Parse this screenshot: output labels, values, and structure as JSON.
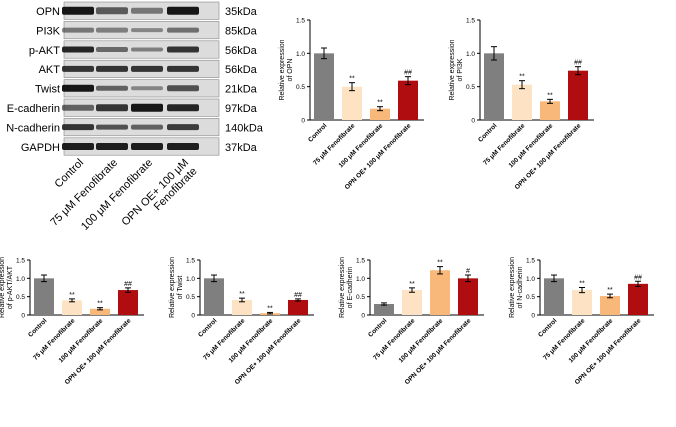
{
  "blot": {
    "proteins": [
      "OPN",
      "PI3K",
      "p-AKT",
      "AKT",
      "Twist",
      "E-cadherin",
      "N-cadherin",
      "GAPDH"
    ],
    "sizes": [
      "35kDa",
      "85kDa",
      "56kDa",
      "56kDa",
      "21kDa",
      "97kDa",
      "140kDa",
      "37kDa"
    ],
    "lanes": [
      "Control",
      "75 μM Fenofibrate",
      "100 μM Fenofibrate",
      "OPN OE+ 100 μM Fenofibrate"
    ]
  },
  "chart_data": [
    {
      "type": "bar",
      "ylabel": "Relative expression of OPN",
      "ylim": [
        0,
        1.5
      ],
      "ticks": [
        0,
        0.5,
        1.0,
        1.5
      ],
      "categories": [
        "Control",
        "75 μM Fenofibrate",
        "100 μM Fenofibrate",
        "OPN OE+ 100 μM Fenofibrate"
      ],
      "values": [
        1.0,
        0.5,
        0.17,
        0.59
      ],
      "errors": [
        0.08,
        0.06,
        0.03,
        0.06
      ],
      "annotations": [
        "",
        "**",
        "**",
        "##"
      ]
    },
    {
      "type": "bar",
      "ylabel": "Relative expression of PI3K",
      "ylim": [
        0,
        1.5
      ],
      "ticks": [
        0,
        0.5,
        1.0,
        1.5
      ],
      "categories": [
        "Control",
        "75 μM Fenofibrate",
        "100 μM Fenofibrate",
        "OPN OE+ 100 μM Fenofibrate"
      ],
      "values": [
        1.0,
        0.53,
        0.28,
        0.74
      ],
      "errors": [
        0.1,
        0.06,
        0.03,
        0.06
      ],
      "annotations": [
        "",
        "**",
        "**",
        "##"
      ]
    },
    {
      "type": "bar",
      "ylabel": "Relative expression of p-AKT/AKT",
      "ylim": [
        0,
        1.5
      ],
      "ticks": [
        0,
        0.5,
        1.0,
        1.5
      ],
      "categories": [
        "Control",
        "75 μM Fenofibrate",
        "100 μM Fenofibrate",
        "OPN OE+ 100 μM Fenofibrate"
      ],
      "values": [
        1.0,
        0.4,
        0.17,
        0.68
      ],
      "errors": [
        0.09,
        0.04,
        0.03,
        0.06
      ],
      "annotations": [
        "",
        "**",
        "**",
        "##"
      ]
    },
    {
      "type": "bar",
      "ylabel": "Relative expression of Twist",
      "ylim": [
        0,
        1.5
      ],
      "ticks": [
        0,
        0.5,
        1.0,
        1.5
      ],
      "categories": [
        "Control",
        "75 μM Fenofibrate",
        "100 μM Fenofibrate",
        "OPN OE+ 100 μM Fenofibrate"
      ],
      "values": [
        1.0,
        0.41,
        0.05,
        0.41
      ],
      "errors": [
        0.09,
        0.05,
        0.02,
        0.03
      ],
      "annotations": [
        "",
        "**",
        "**",
        "##"
      ]
    },
    {
      "type": "bar",
      "ylabel": "Relative expression of E-cadherin",
      "ylim": [
        0,
        1.5
      ],
      "ticks": [
        0,
        0.5,
        1.0,
        1.5
      ],
      "categories": [
        "Control",
        "75 μM Fenofibrate",
        "100 μM Fenofibrate",
        "OPN OE+ 100 μM Fenofibrate"
      ],
      "values": [
        0.3,
        0.68,
        1.22,
        1.0
      ],
      "errors": [
        0.03,
        0.06,
        0.1,
        0.09
      ],
      "annotations": [
        "",
        "**",
        "**",
        "#"
      ]
    },
    {
      "type": "bar",
      "ylabel": "Relative expression of N-cadherin",
      "ylim": [
        0,
        1.5
      ],
      "ticks": [
        0,
        0.5,
        1.0,
        1.5
      ],
      "categories": [
        "Control",
        "75 μM Fenofibrate",
        "100 μM Fenofibrate",
        "OPN OE+ 100 μM Fenofibrate"
      ],
      "values": [
        1.0,
        0.68,
        0.52,
        0.85
      ],
      "errors": [
        0.09,
        0.07,
        0.05,
        0.07
      ],
      "annotations": [
        "",
        "**",
        "**",
        "##"
      ]
    }
  ],
  "colors": {
    "series": [
      "#7f7f7f",
      "#fde3c4",
      "#f7b87a",
      "#b00d10"
    ],
    "band": "#161616",
    "blot_bg": "#dcdcdc"
  }
}
